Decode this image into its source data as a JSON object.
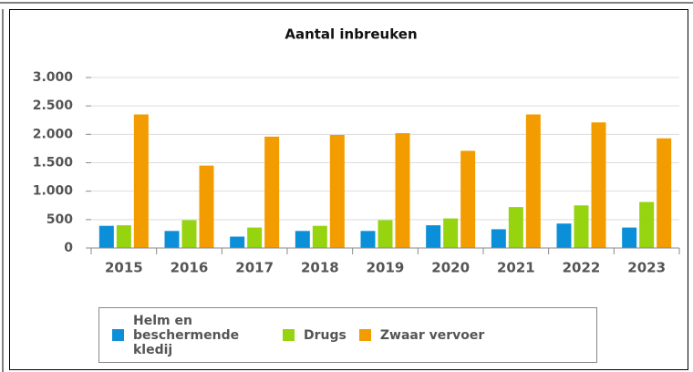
{
  "chart_data": {
    "type": "bar",
    "title": "Aantal inbreuken",
    "categories": [
      "2015",
      "2016",
      "2017",
      "2018",
      "2019",
      "2020",
      "2021",
      "2022",
      "2023"
    ],
    "series": [
      {
        "name": "Helm en beschermende kledij",
        "color": "#0b8fd8",
        "values": [
          390,
          300,
          200,
          300,
          300,
          400,
          330,
          430,
          360
        ]
      },
      {
        "name": "Drugs",
        "color": "#95d40f",
        "values": [
          400,
          490,
          360,
          390,
          490,
          520,
          720,
          750,
          810
        ]
      },
      {
        "name": "Zwaar vervoer",
        "color": "#f39c00",
        "values": [
          2350,
          1450,
          1960,
          1990,
          2020,
          1710,
          2350,
          2210,
          1930
        ]
      }
    ],
    "ylim": [
      0,
      3000
    ],
    "yticks": [
      0,
      500,
      {
        "value": 1000,
        "label": "1.000"
      },
      {
        "value": 1500,
        "label": "1.500"
      },
      {
        "value": 2000,
        "label": "2.000"
      },
      {
        "value": 2500,
        "label": "2.500"
      },
      {
        "value": 3000,
        "label": "3.000"
      }
    ],
    "grid": true,
    "legend": "bottom"
  }
}
